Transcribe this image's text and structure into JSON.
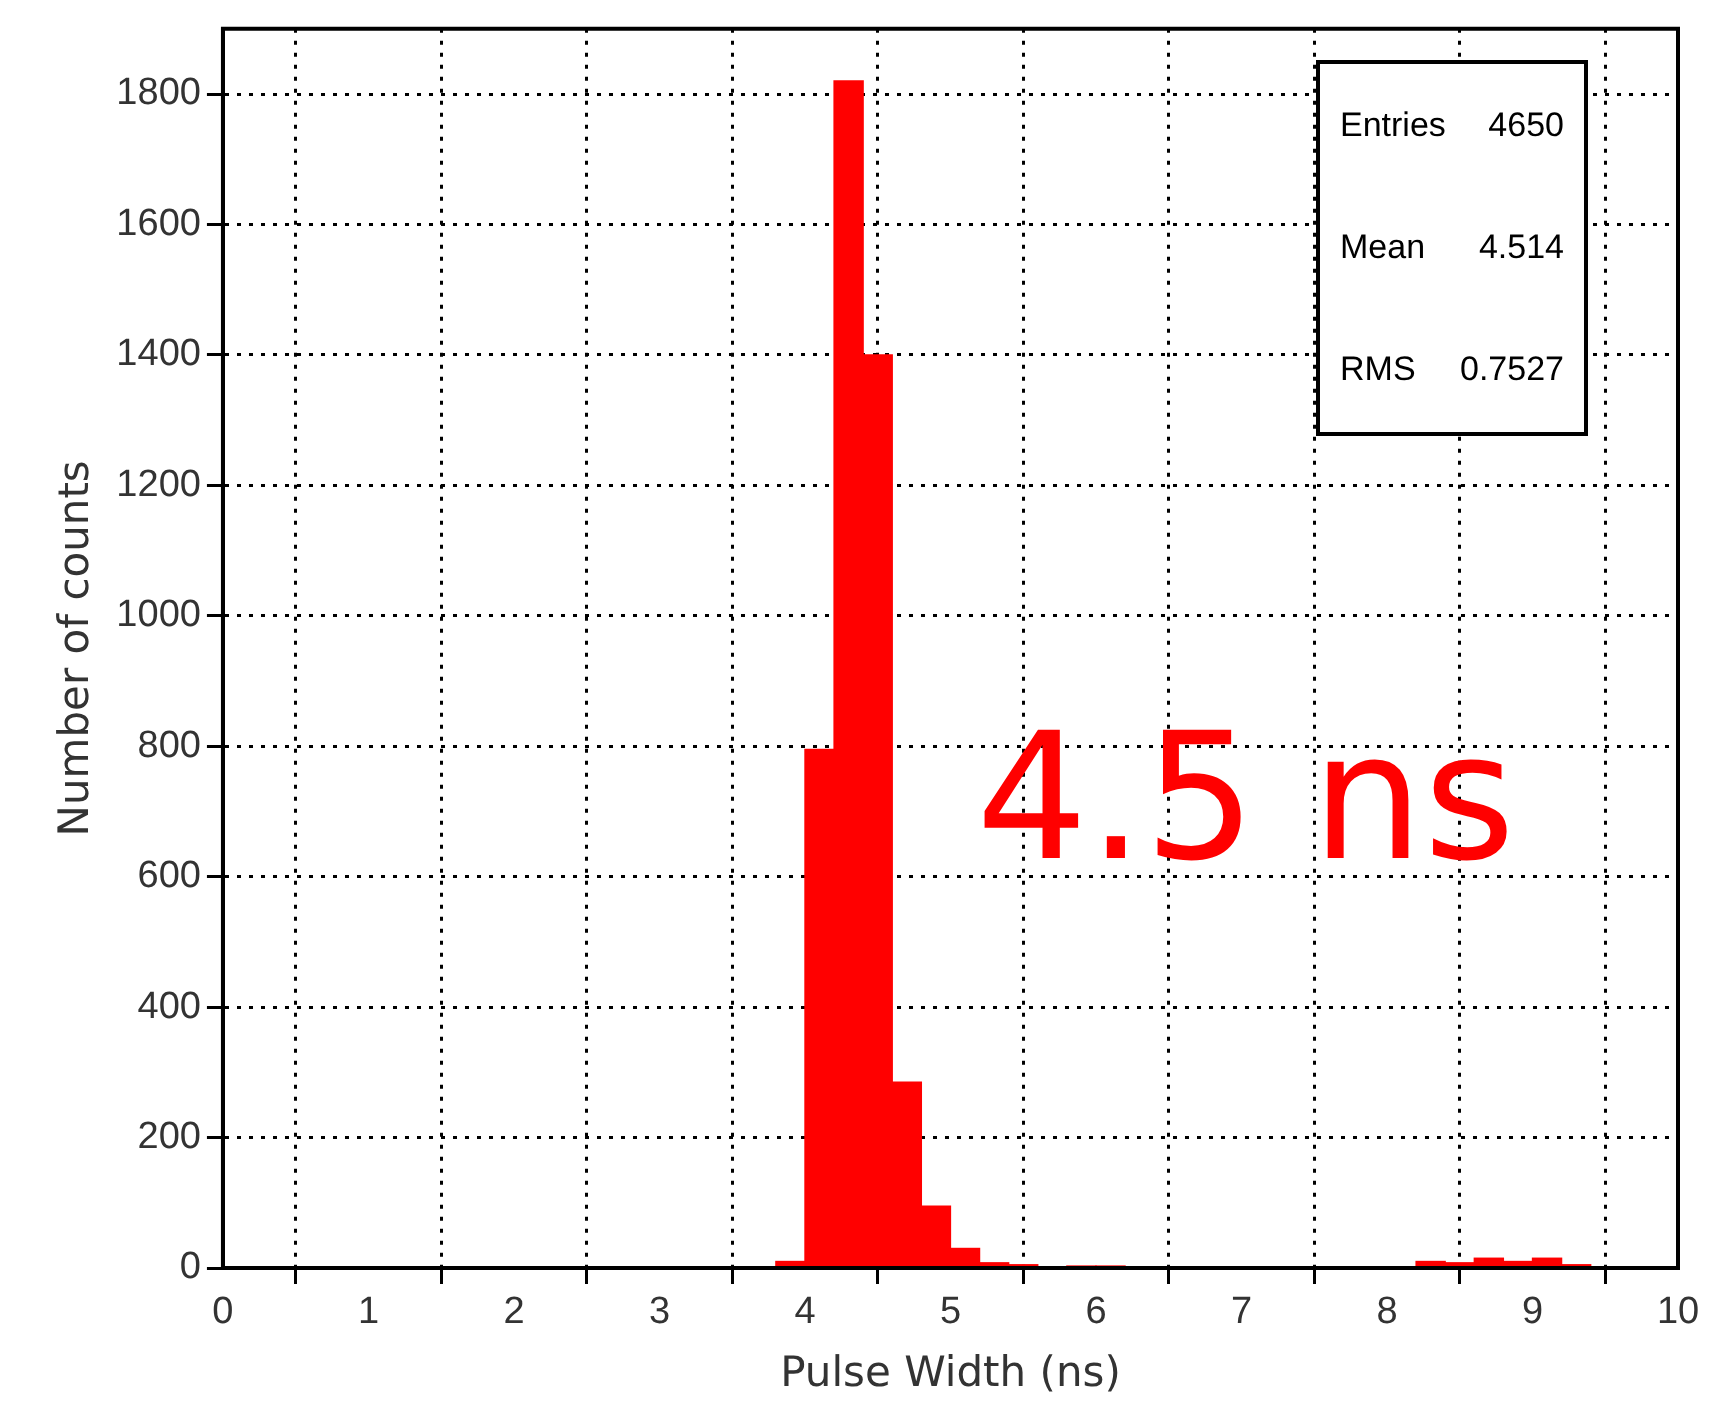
{
  "chart_data": {
    "type": "histogram",
    "xlabel": "Pulse Width (ns)",
    "ylabel": "Number of counts",
    "bins": [
      0,
      0.2,
      0.4,
      0.6,
      0.8,
      1,
      1.2,
      1.4,
      1.6,
      1.8,
      2,
      2.2,
      2.4,
      2.6,
      2.8,
      3,
      3.2,
      3.4,
      3.6,
      3.8,
      4,
      4.2,
      4.4,
      4.6,
      4.8,
      5,
      5.2,
      5.4,
      5.6,
      5.8,
      6,
      6.2,
      6.4,
      6.6,
      6.8,
      7,
      7.2,
      7.4,
      7.6,
      7.8,
      8,
      8.2,
      8.4,
      8.6,
      8.8,
      9,
      9.2,
      9.4,
      9.6,
      9.8,
      10
    ],
    "values": [
      0,
      0,
      0,
      0,
      0,
      0,
      0,
      0,
      0,
      0,
      0,
      0,
      0,
      0,
      0,
      0,
      0,
      0,
      0,
      10,
      795,
      1820,
      1400,
      285,
      95,
      30,
      8,
      5,
      0,
      3,
      3,
      0,
      0,
      0,
      0,
      0,
      0,
      0,
      0,
      0,
      0,
      10,
      8,
      15,
      10,
      15,
      5,
      0,
      0,
      0
    ],
    "color": "#ff0000",
    "xlim": [
      0,
      10
    ],
    "xticks": [
      0,
      1,
      2,
      3,
      4,
      5,
      6,
      7,
      8,
      9,
      10
    ],
    "ylim": [
      0,
      1900
    ],
    "yticks": [
      0,
      200,
      400,
      600,
      800,
      1000,
      1200,
      1400,
      1600,
      1800
    ],
    "grid": true,
    "legend": false,
    "annotations": [
      "Entries 4650",
      "Mean 4.514",
      "RMS 0.7527",
      "4.5 ns"
    ]
  }
}
